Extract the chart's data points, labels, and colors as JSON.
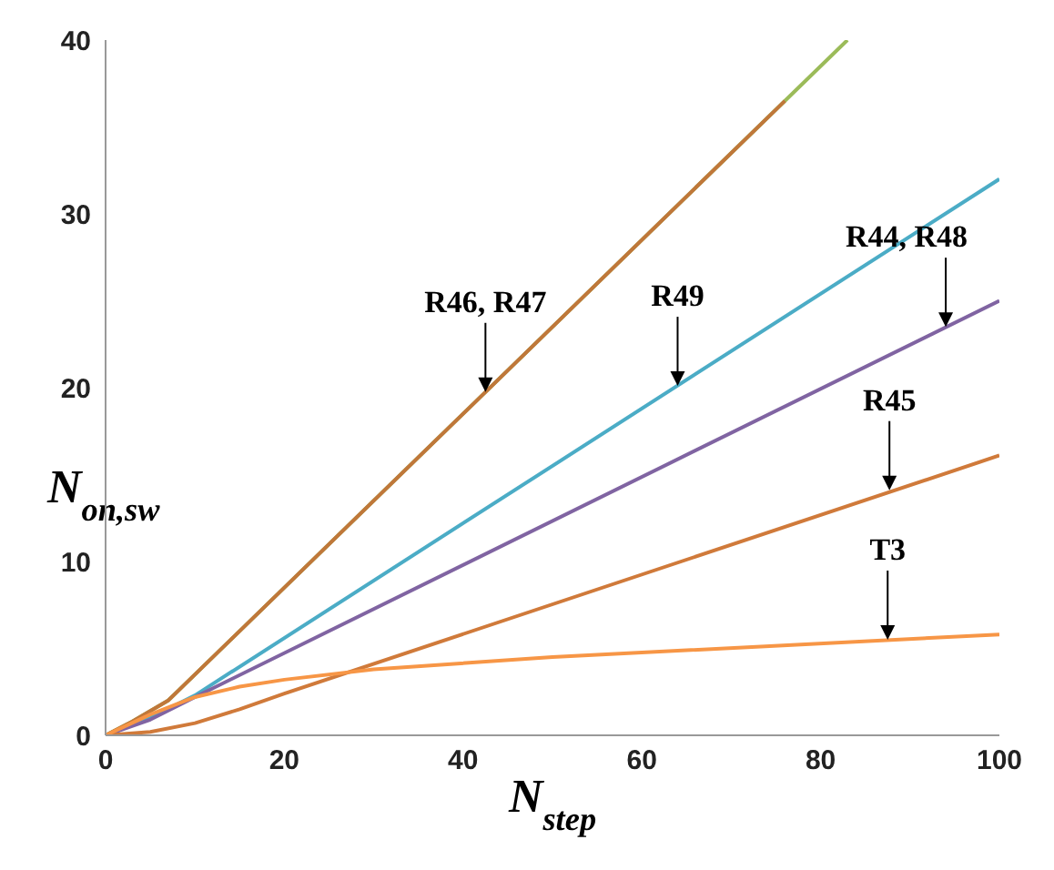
{
  "chart_data": {
    "type": "line",
    "xlabel": "N$_{step}$",
    "ylabel": "N$_{on,sw}$",
    "xlim": [
      0,
      100
    ],
    "xticks": [
      0,
      20,
      40,
      60,
      80,
      100
    ],
    "ylim": [
      0,
      40
    ],
    "yticks": [
      0,
      10,
      20,
      30,
      40
    ],
    "series": [
      {
        "color": "#9bbb59",
        "x": [
          0,
          3,
          7,
          83
        ],
        "values": [
          0,
          0.8,
          2,
          40
        ]
      },
      {
        "color": "#c0773a",
        "x": [
          0,
          3,
          7,
          76
        ],
        "values": [
          0,
          0.8,
          2,
          36.5
        ]
      },
      {
        "color": "#4bacc6",
        "x": [
          0,
          5,
          10,
          100
        ],
        "values": [
          0,
          1,
          2.3,
          32
        ]
      },
      {
        "color": "#8064a2",
        "x": [
          0,
          5,
          10,
          100
        ],
        "values": [
          0,
          0.9,
          2.2,
          25
        ]
      },
      {
        "color": "#d07a3a",
        "x": [
          0,
          5,
          10,
          15,
          20,
          100
        ],
        "values": [
          0,
          0.2,
          0.7,
          1.5,
          2.4,
          16.1
        ]
      },
      {
        "color": "#f79646",
        "x": [
          0,
          5,
          10,
          15,
          20,
          30,
          50,
          100
        ],
        "values": [
          0,
          1.2,
          2.2,
          2.8,
          3.2,
          3.8,
          4.5,
          5.8
        ]
      }
    ],
    "annotations": [
      {
        "text": "R46, R47",
        "x": 42.5,
        "y": 19.75
      },
      {
        "text": "R49",
        "x": 64,
        "y": 20.1
      },
      {
        "text": "R44, R48",
        "x": 94,
        "y": 23.5
      },
      {
        "text": "R45",
        "x": 87.7,
        "y": 14.1
      },
      {
        "text": "T3",
        "x": 87.5,
        "y": 5.5
      }
    ]
  }
}
